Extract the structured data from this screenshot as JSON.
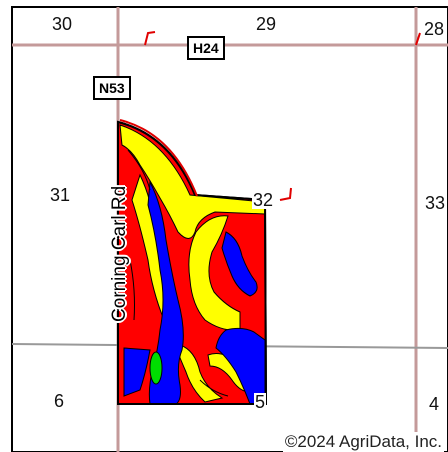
{
  "sections": {
    "s30": "30",
    "s29": "29",
    "s28": "28",
    "s31": "31",
    "s32": "32",
    "s33": "33",
    "s6": "6",
    "s5": "5",
    "s4": "4"
  },
  "highways": {
    "h24": "H24",
    "n53": "N53"
  },
  "road_label": "Corning Carl Rd",
  "copyright": "©2024 AgriData, Inc.",
  "colors": {
    "section_line": "#c49a9a",
    "township_line": "#999999",
    "field_outline": "#000000",
    "boundary_red": "#e00000",
    "soil_red": "#ff0000",
    "soil_yellow": "#ffff00",
    "soil_blue": "#0000ff",
    "soil_green": "#00dd00"
  }
}
